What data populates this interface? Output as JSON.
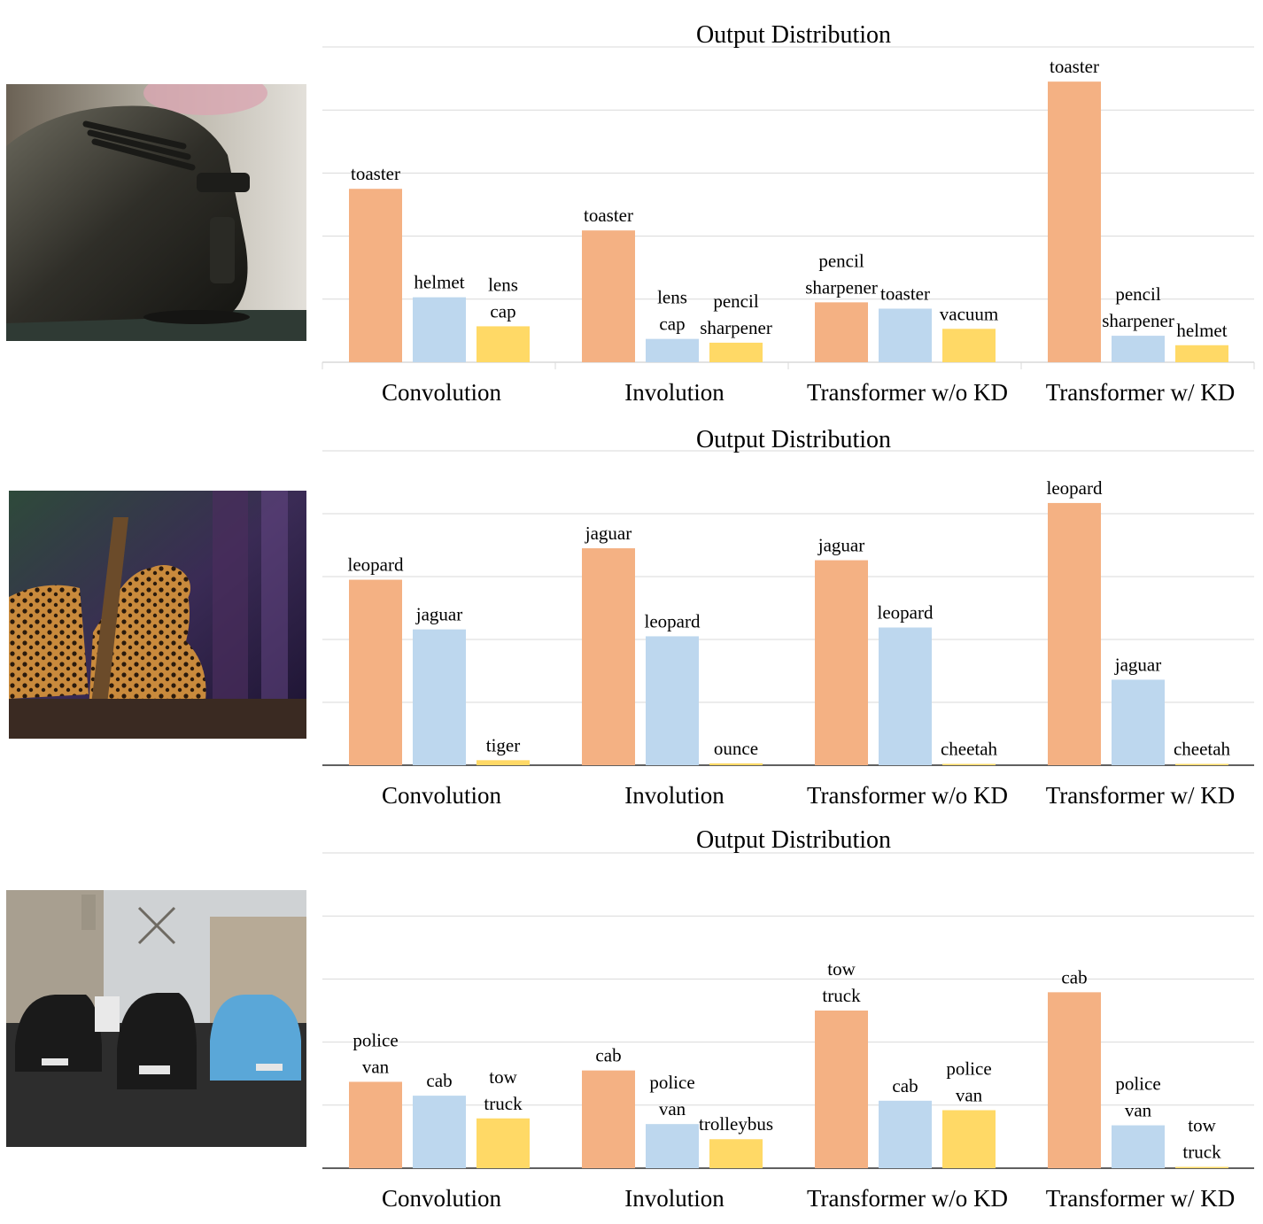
{
  "colors": {
    "bar1": "#F4B183",
    "bar2": "#BDD7EE",
    "bar3": "#FFD966",
    "grid": "#D9D9D9",
    "axis": "#000000"
  },
  "images": [
    {
      "name": "toaster-image",
      "subject": "toaster"
    },
    {
      "name": "leopard-image",
      "subject": "leopard"
    },
    {
      "name": "taxi-street-image",
      "subject": "cab"
    }
  ],
  "chart_data": [
    {
      "type": "bar",
      "title": "Output Distribution",
      "categories": [
        "Convolution",
        "Involution",
        "Transformer w/o KD",
        "Transformer w/ KD"
      ],
      "ylim": [
        0,
        5
      ],
      "grid": true,
      "groups": [
        {
          "category": "Convolution",
          "bars": [
            {
              "label": "toaster",
              "value": 2.75
            },
            {
              "label": "helmet",
              "value": 1.03
            },
            {
              "label": "lens cap",
              "value": 0.57
            }
          ]
        },
        {
          "category": "Involution",
          "bars": [
            {
              "label": "toaster",
              "value": 2.09
            },
            {
              "label": "lens cap",
              "value": 0.37
            },
            {
              "label": "pencil sharpener",
              "value": 0.31
            }
          ]
        },
        {
          "category": "Transformer w/o KD",
          "bars": [
            {
              "label": "pencil sharpener",
              "value": 0.95
            },
            {
              "label": "toaster",
              "value": 0.85
            },
            {
              "label": "vacuum",
              "value": 0.53
            }
          ]
        },
        {
          "category": "Transformer w/ KD",
          "bars": [
            {
              "label": "toaster",
              "value": 4.45
            },
            {
              "label": "pencil sharpener",
              "value": 0.42
            },
            {
              "label": "helmet",
              "value": 0.27
            }
          ]
        }
      ]
    },
    {
      "type": "bar",
      "title": "Output Distribution",
      "categories": [
        "Convolution",
        "Involution",
        "Transformer w/o KD",
        "Transformer w/ KD"
      ],
      "ylim": [
        0,
        5
      ],
      "grid": true,
      "groups": [
        {
          "category": "Convolution",
          "bars": [
            {
              "label": "leopard",
              "value": 2.95
            },
            {
              "label": "jaguar",
              "value": 2.16
            },
            {
              "label": "tiger",
              "value": 0.08
            }
          ]
        },
        {
          "category": "Involution",
          "bars": [
            {
              "label": "jaguar",
              "value": 3.45
            },
            {
              "label": "leopard",
              "value": 2.05
            },
            {
              "label": "ounce",
              "value": 0.03
            }
          ]
        },
        {
          "category": "Transformer w/o KD",
          "bars": [
            {
              "label": "jaguar",
              "value": 3.26
            },
            {
              "label": "leopard",
              "value": 2.19
            },
            {
              "label": "cheetah",
              "value": 0.01
            }
          ]
        },
        {
          "category": "Transformer w/ KD",
          "bars": [
            {
              "label": "leopard",
              "value": 4.17
            },
            {
              "label": "jaguar",
              "value": 1.36
            },
            {
              "label": "cheetah",
              "value": 0.01
            }
          ]
        }
      ]
    },
    {
      "type": "bar",
      "title": "Output Distribution",
      "categories": [
        "Convolution",
        "Involution",
        "Transformer w/o KD",
        "Transformer w/ KD"
      ],
      "ylim": [
        0,
        5
      ],
      "grid": true,
      "groups": [
        {
          "category": "Convolution",
          "bars": [
            {
              "label": "police van",
              "value": 1.37
            },
            {
              "label": "cab",
              "value": 1.15
            },
            {
              "label": "tow truck",
              "value": 0.79
            }
          ]
        },
        {
          "category": "Involution",
          "bars": [
            {
              "label": "cab",
              "value": 1.55
            },
            {
              "label": "police van",
              "value": 0.7
            },
            {
              "label": "trolleybus",
              "value": 0.46
            }
          ]
        },
        {
          "category": "Transformer w/o KD",
          "bars": [
            {
              "label": "tow truck",
              "value": 2.5
            },
            {
              "label": "cab",
              "value": 1.07
            },
            {
              "label": "police van",
              "value": 0.92
            }
          ]
        },
        {
          "category": "Transformer w/ KD",
          "bars": [
            {
              "label": "cab",
              "value": 2.79
            },
            {
              "label": "police van",
              "value": 0.68
            },
            {
              "label": "tow truck",
              "value": 0.02
            }
          ]
        }
      ]
    }
  ]
}
